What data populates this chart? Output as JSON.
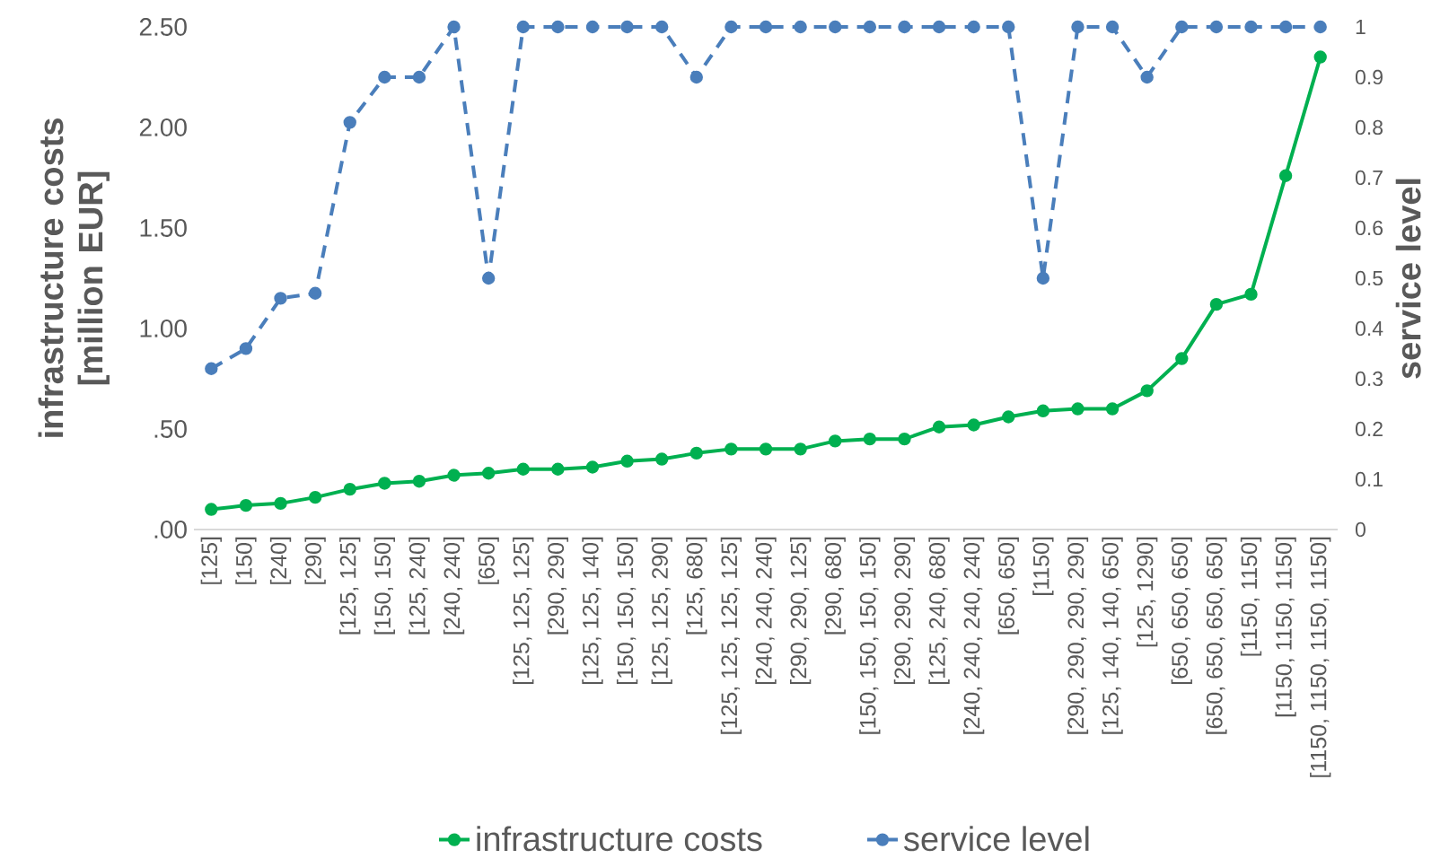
{
  "chart_data": {
    "type": "line",
    "ylabel": "infrastructure costs [million EUR]",
    "y2label": "service level",
    "marker": "circle",
    "legend": "bottom",
    "categories": [
      "[125]",
      "[150]",
      "[240]",
      "[290]",
      "[125, 125]",
      "[150, 150]",
      "[125, 240]",
      "[240, 240]",
      "[650]",
      "[125, 125, 125]",
      "[290, 290]",
      "[125, 125, 140]",
      "[150, 150, 150]",
      "[125, 125, 290]",
      "[125, 680]",
      "[125, 125, 125, 125]",
      "[240, 240, 240]",
      "[290, 290, 125]",
      "[290, 680]",
      "[150, 150, 150, 150]",
      "[290, 290, 290]",
      "[125, 240, 680]",
      "[240, 240, 240, 240]",
      "[650, 650]",
      "[1150]",
      "[290, 290, 290, 290]",
      "[125, 140, 140, 650]",
      "[125, 1290]",
      "[650, 650, 650]",
      "[650, 650, 650, 650]",
      "[1150, 1150]",
      "[1150, 1150, 1150]",
      "[1150, 1150, 1150, 1150]"
    ],
    "series": [
      {
        "name": "infrastructure costs",
        "color": "#00b050",
        "line_style": "solid",
        "values": [
          0.1,
          0.12,
          0.13,
          0.16,
          0.2,
          0.23,
          0.24,
          0.27,
          0.28,
          0.3,
          0.3,
          0.31,
          0.34,
          0.35,
          0.38,
          0.4,
          0.4,
          0.4,
          0.44,
          0.45,
          0.45,
          0.51,
          0.52,
          0.56,
          0.59,
          0.6,
          0.6,
          0.69,
          0.85,
          1.12,
          1.17,
          1.76,
          2.35
        ]
      },
      {
        "name": "service level",
        "color": "#4a7ebb",
        "line_style": "dashed",
        "axis": "y2",
        "values": [
          0.32,
          0.36,
          0.46,
          0.47,
          0.81,
          0.9,
          0.9,
          1,
          0.5,
          1,
          1,
          1,
          1,
          1,
          0.9,
          1,
          1,
          1,
          1,
          1,
          1,
          1,
          1,
          1,
          0.5,
          1,
          1,
          0.9,
          1,
          1,
          1,
          1,
          1
        ]
      }
    ],
    "ylim": [
      0,
      2.5
    ],
    "yticks": [
      {
        "value": 0,
        "label": ".00"
      },
      {
        "value": 0.5,
        "label": ".50"
      },
      {
        "value": 1,
        "label": "1.00"
      },
      {
        "value": 1.5,
        "label": "1.50"
      },
      {
        "value": 2,
        "label": "2.00"
      },
      {
        "value": 2.5,
        "label": "2.50"
      }
    ],
    "y2lim": [
      0,
      1
    ],
    "y2ticks": [
      0,
      0.1,
      0.2,
      0.3,
      0.4,
      0.5,
      0.6,
      0.7,
      0.8,
      0.9,
      1
    ]
  }
}
